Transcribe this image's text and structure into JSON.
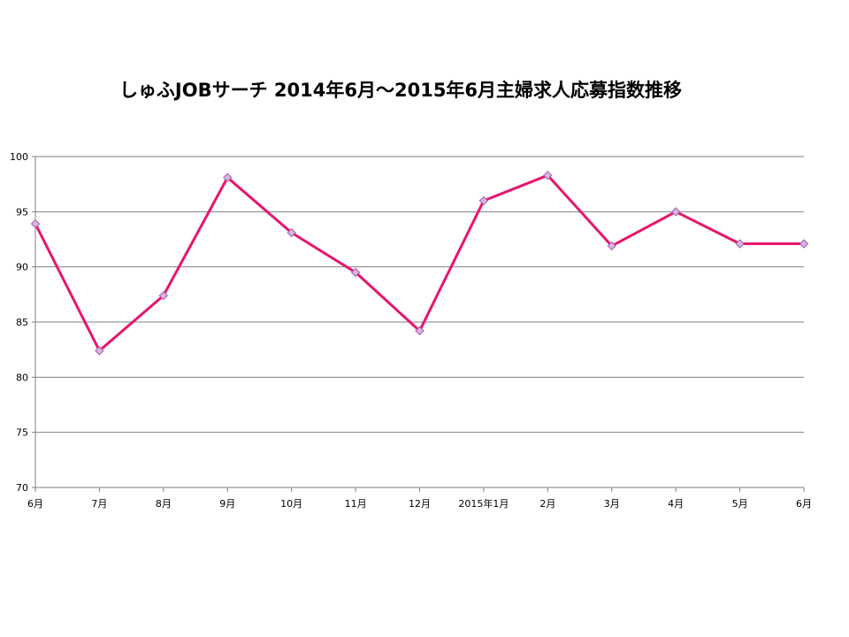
{
  "chart_data": {
    "type": "line",
    "title": "しゅふJOBサーチ 2014年6月～2015年6月主婦求人応募指数推移",
    "xlabel": "",
    "ylabel": "",
    "categories": [
      "6月",
      "7月",
      "8月",
      "9月",
      "10月",
      "11月",
      "12月",
      "2015年1月",
      "2月",
      "3月",
      "4月",
      "5月",
      "6月"
    ],
    "series": [
      {
        "values": [
          93.9,
          82.4,
          87.4,
          98.1,
          93.1,
          89.5,
          84.2,
          96.0,
          98.3,
          91.9,
          95.0,
          92.1,
          92.1
        ]
      }
    ],
    "ylim": [
      70,
      100
    ],
    "yticks": [
      70,
      75,
      80,
      85,
      90,
      95,
      100
    ],
    "grid": true,
    "legend": "none",
    "line_color": "#E8156D",
    "marker_fill": "#D8B4E2",
    "marker_stroke": "#A060A8",
    "grid_color": "#7F7F7F"
  }
}
